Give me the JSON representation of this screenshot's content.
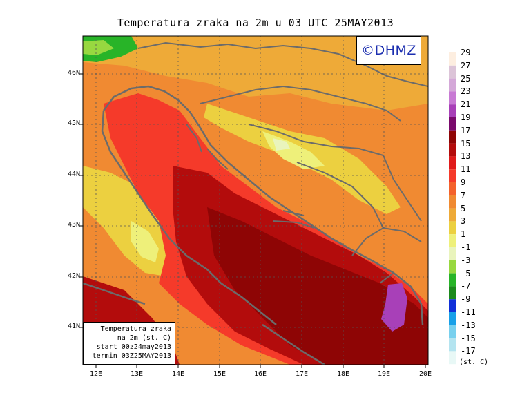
{
  "title": "Temperatura zraka na 2m u 03 UTC 25MAY2013",
  "logo": "©DHMZ",
  "infobox": {
    "line1": "Temperatura zraka",
    "line2": "na 2m (st. C)",
    "line3": "start 00z24may2013",
    "line4": "termin 03Z25MAY2013"
  },
  "axes": {
    "lat_labels": [
      "46N",
      "45N",
      "44N",
      "43N",
      "42N",
      "41N"
    ],
    "lon_labels": [
      "12E",
      "13E",
      "14E",
      "15E",
      "16E",
      "17E",
      "18E",
      "19E",
      "20E"
    ]
  },
  "legend": {
    "labels": [
      "29",
      "27",
      "25",
      "23",
      "21",
      "19",
      "17",
      "15",
      "13",
      "11",
      "9",
      "7",
      "5",
      "3",
      "1",
      "-1",
      "-3",
      "-5",
      "-7",
      "-9",
      "-11",
      "-13",
      "-15",
      "-17"
    ],
    "units": "(st. C)",
    "colors": [
      "#fdeee0",
      "#dcc4d8",
      "#d4a8d8",
      "#c87ad4",
      "#a840b8",
      "#7a0a6c",
      "#8e0505",
      "#b30c0c",
      "#e01b1b",
      "#f53a2a",
      "#f4622c",
      "#f08a32",
      "#eeaa38",
      "#ecd040",
      "#eef07a",
      "#e9f4bc",
      "#98d840",
      "#28b428",
      "#1c8a1c",
      "#1030d8",
      "#18a0e8",
      "#78d0ee",
      "#b4e4f0",
      "#e8f8f6"
    ]
  },
  "colors": {
    "coast": "#6b6b6b",
    "background": "#ffffff"
  }
}
